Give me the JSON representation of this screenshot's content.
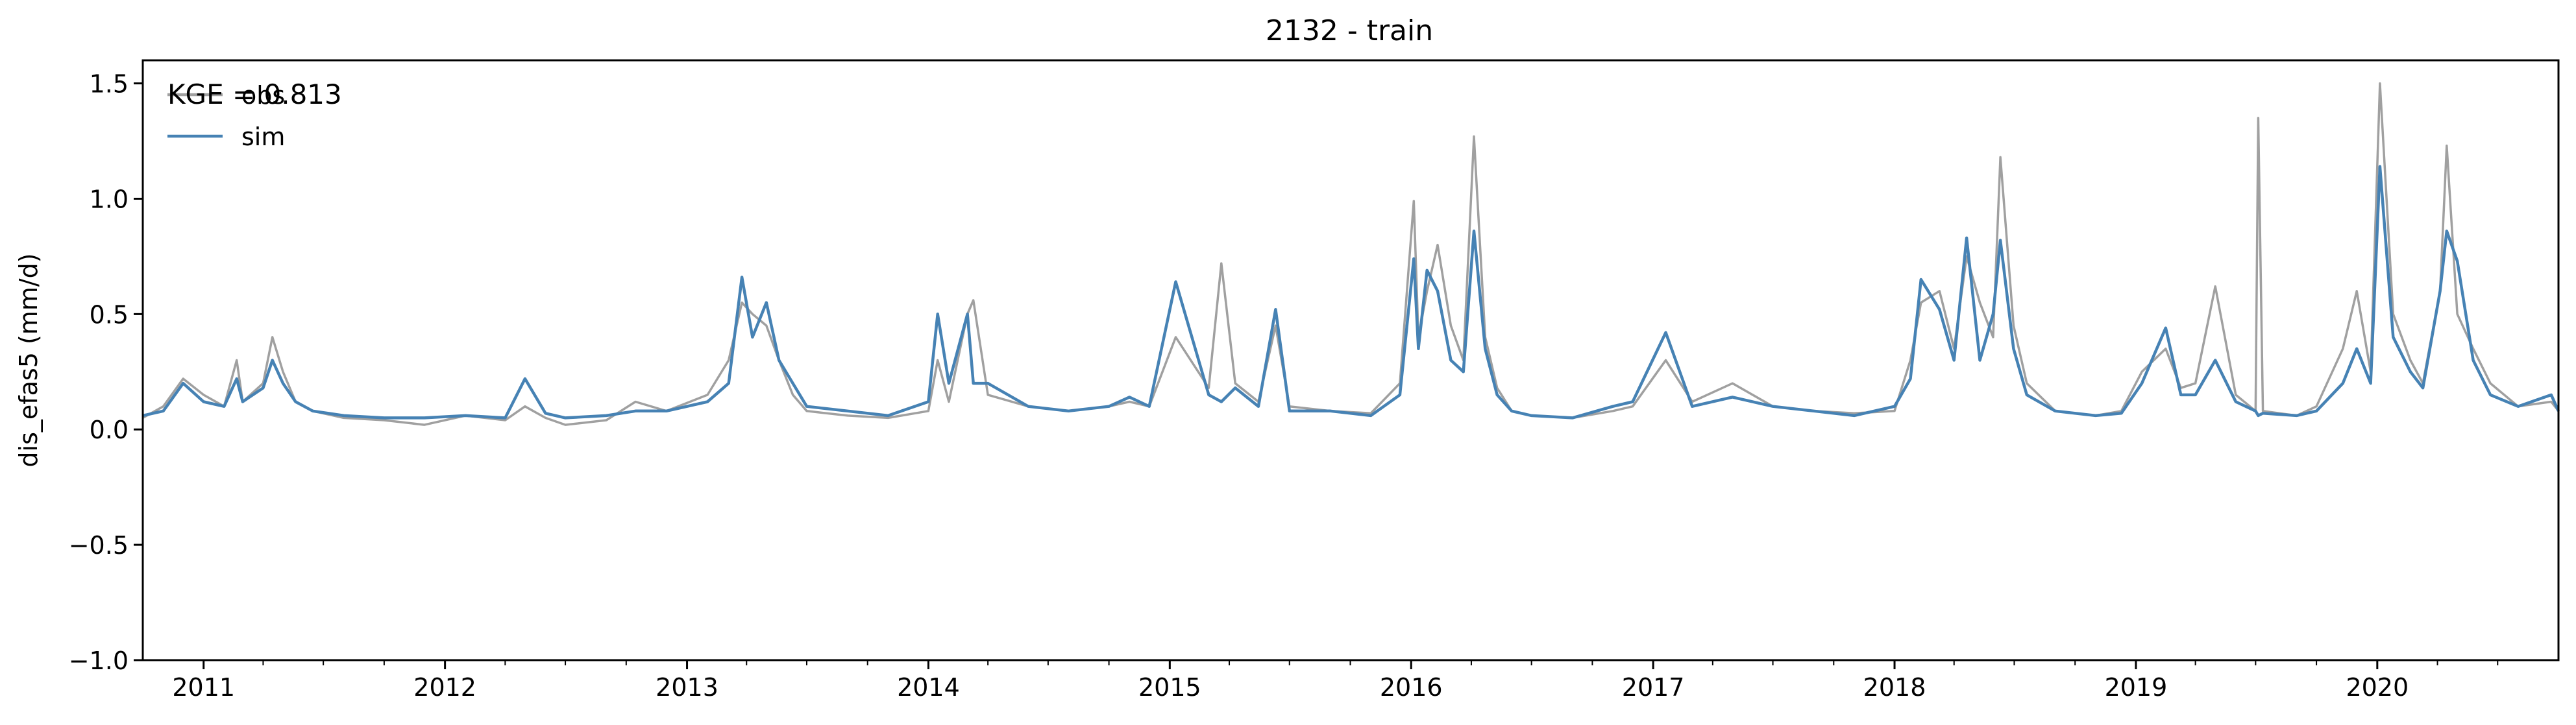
{
  "chart_data": {
    "type": "line",
    "title": "2132 - train",
    "xlabel": "",
    "ylabel": "dis_efas5 (mm/d)",
    "xlim": [
      "2010-10-01",
      "2020-10-01"
    ],
    "ylim": [
      -1.0,
      1.6
    ],
    "yticks": [
      -1.0,
      -0.5,
      0.0,
      0.5,
      1.0,
      1.5
    ],
    "ytick_labels": [
      "−1.0",
      "−0.5",
      "0.0",
      "0.5",
      "1.0",
      "1.5"
    ],
    "xticks": [
      "2011-01-01",
      "2012-01-01",
      "2013-01-01",
      "2014-01-01",
      "2015-01-01",
      "2016-01-01",
      "2017-01-01",
      "2018-01-01",
      "2019-01-01",
      "2020-01-01"
    ],
    "xtick_labels": [
      "2011",
      "2012",
      "2013",
      "2014",
      "2015",
      "2016",
      "2017",
      "2018",
      "2019",
      "2020"
    ],
    "annotation": "KGE = 0.813",
    "legend": {
      "location": "upper-left",
      "entries": [
        "obs",
        "sim"
      ]
    },
    "grid": false,
    "colors": {
      "obs": "#a0a0a0",
      "sim": "#4682b4"
    },
    "series": [
      {
        "name": "obs",
        "x": [
          "2010-10-01",
          "2010-11-01",
          "2010-12-01",
          "2011-01-01",
          "2011-02-01",
          "2011-02-20",
          "2011-03-01",
          "2011-04-01",
          "2011-04-15",
          "2011-05-01",
          "2011-05-20",
          "2011-06-15",
          "2011-08-01",
          "2011-10-01",
          "2011-12-01",
          "2012-02-01",
          "2012-04-01",
          "2012-05-01",
          "2012-06-01",
          "2012-07-01",
          "2012-09-01",
          "2012-10-15",
          "2012-12-01",
          "2013-02-01",
          "2013-03-05",
          "2013-03-25",
          "2013-04-10",
          "2013-05-01",
          "2013-05-20",
          "2013-06-10",
          "2013-07-01",
          "2013-09-01",
          "2013-11-01",
          "2014-01-01",
          "2014-01-15",
          "2014-02-01",
          "2014-03-01",
          "2014-03-10",
          "2014-04-01",
          "2014-06-01",
          "2014-08-01",
          "2014-10-01",
          "2014-11-01",
          "2014-12-01",
          "2015-01-10",
          "2015-03-01",
          "2015-03-20",
          "2015-04-10",
          "2015-05-15",
          "2015-06-10",
          "2015-07-01",
          "2015-09-01",
          "2015-11-01",
          "2015-12-15",
          "2016-01-05",
          "2016-01-12",
          "2016-01-25",
          "2016-02-10",
          "2016-03-01",
          "2016-03-20",
          "2016-04-05",
          "2016-04-22",
          "2016-05-10",
          "2016-06-01",
          "2016-07-01",
          "2016-09-01",
          "2016-11-01",
          "2016-12-01",
          "2017-01-20",
          "2017-03-01",
          "2017-05-01",
          "2017-07-01",
          "2017-09-01",
          "2017-11-01",
          "2018-01-01",
          "2018-01-25",
          "2018-02-10",
          "2018-03-10",
          "2018-04-01",
          "2018-04-20",
          "2018-05-10",
          "2018-05-30",
          "2018-06-10",
          "2018-06-30",
          "2018-07-20",
          "2018-09-01",
          "2018-11-01",
          "2018-12-10",
          "2019-01-10",
          "2019-02-15",
          "2019-03-10",
          "2019-04-01",
          "2019-05-01",
          "2019-06-01",
          "2019-07-01",
          "2019-07-05",
          "2019-07-12",
          "2019-09-01",
          "2019-10-01",
          "2019-11-10",
          "2019-12-01",
          "2019-12-22",
          "2020-01-05",
          "2020-01-25",
          "2020-02-20",
          "2020-03-10",
          "2020-04-05",
          "2020-04-15",
          "2020-05-01",
          "2020-05-25",
          "2020-06-20",
          "2020-08-01",
          "2020-09-20",
          "2020-10-01"
        ],
        "values": [
          0.05,
          0.1,
          0.22,
          0.15,
          0.1,
          0.3,
          0.12,
          0.2,
          0.4,
          0.25,
          0.12,
          0.08,
          0.05,
          0.04,
          0.02,
          0.06,
          0.04,
          0.1,
          0.05,
          0.02,
          0.04,
          0.12,
          0.08,
          0.15,
          0.3,
          0.55,
          0.5,
          0.45,
          0.3,
          0.15,
          0.08,
          0.06,
          0.05,
          0.08,
          0.3,
          0.12,
          0.5,
          0.56,
          0.15,
          0.1,
          0.08,
          0.1,
          0.12,
          0.1,
          0.4,
          0.18,
          0.72,
          0.2,
          0.12,
          0.45,
          0.1,
          0.08,
          0.07,
          0.2,
          0.99,
          0.4,
          0.6,
          0.8,
          0.45,
          0.3,
          1.27,
          0.4,
          0.18,
          0.08,
          0.06,
          0.05,
          0.08,
          0.1,
          0.3,
          0.12,
          0.2,
          0.1,
          0.08,
          0.07,
          0.08,
          0.3,
          0.55,
          0.6,
          0.35,
          0.75,
          0.55,
          0.4,
          1.18,
          0.45,
          0.2,
          0.08,
          0.06,
          0.08,
          0.25,
          0.35,
          0.18,
          0.2,
          0.62,
          0.15,
          0.08,
          1.35,
          0.08,
          0.06,
          0.1,
          0.35,
          0.6,
          0.25,
          1.5,
          0.5,
          0.3,
          0.2,
          0.6,
          1.23,
          0.5,
          0.35,
          0.2,
          0.1,
          0.12,
          0.08
        ]
      },
      {
        "name": "sim",
        "x": [
          "2010-10-01",
          "2010-11-01",
          "2010-12-01",
          "2011-01-01",
          "2011-02-01",
          "2011-02-20",
          "2011-03-01",
          "2011-04-01",
          "2011-04-15",
          "2011-05-01",
          "2011-05-20",
          "2011-06-15",
          "2011-08-01",
          "2011-10-01",
          "2011-12-01",
          "2012-02-01",
          "2012-04-01",
          "2012-05-01",
          "2012-06-01",
          "2012-07-01",
          "2012-09-01",
          "2012-10-15",
          "2012-12-01",
          "2013-02-01",
          "2013-03-05",
          "2013-03-25",
          "2013-04-10",
          "2013-05-01",
          "2013-05-20",
          "2013-06-10",
          "2013-07-01",
          "2013-09-01",
          "2013-11-01",
          "2014-01-01",
          "2014-01-15",
          "2014-02-01",
          "2014-03-01",
          "2014-03-10",
          "2014-04-01",
          "2014-06-01",
          "2014-08-01",
          "2014-10-01",
          "2014-11-01",
          "2014-12-01",
          "2015-01-10",
          "2015-03-01",
          "2015-03-20",
          "2015-04-10",
          "2015-05-15",
          "2015-06-10",
          "2015-07-01",
          "2015-09-01",
          "2015-11-01",
          "2015-12-15",
          "2016-01-05",
          "2016-01-12",
          "2016-01-25",
          "2016-02-10",
          "2016-03-01",
          "2016-03-20",
          "2016-04-05",
          "2016-04-22",
          "2016-05-10",
          "2016-06-01",
          "2016-07-01",
          "2016-09-01",
          "2016-11-01",
          "2016-12-01",
          "2017-01-20",
          "2017-03-01",
          "2017-05-01",
          "2017-07-01",
          "2017-09-01",
          "2017-11-01",
          "2018-01-01",
          "2018-01-25",
          "2018-02-10",
          "2018-03-10",
          "2018-04-01",
          "2018-04-20",
          "2018-05-10",
          "2018-05-30",
          "2018-06-10",
          "2018-06-30",
          "2018-07-20",
          "2018-09-01",
          "2018-11-01",
          "2018-12-10",
          "2019-01-10",
          "2019-02-15",
          "2019-03-10",
          "2019-04-01",
          "2019-05-01",
          "2019-06-01",
          "2019-07-01",
          "2019-07-05",
          "2019-07-12",
          "2019-09-01",
          "2019-10-01",
          "2019-11-10",
          "2019-12-01",
          "2019-12-22",
          "2020-01-05",
          "2020-01-25",
          "2020-02-20",
          "2020-03-10",
          "2020-04-05",
          "2020-04-15",
          "2020-05-01",
          "2020-05-25",
          "2020-06-20",
          "2020-08-01",
          "2020-09-20",
          "2020-10-01"
        ],
        "values": [
          0.06,
          0.08,
          0.2,
          0.12,
          0.1,
          0.22,
          0.12,
          0.18,
          0.3,
          0.2,
          0.12,
          0.08,
          0.06,
          0.05,
          0.05,
          0.06,
          0.05,
          0.22,
          0.07,
          0.05,
          0.06,
          0.08,
          0.08,
          0.12,
          0.2,
          0.66,
          0.4,
          0.55,
          0.3,
          0.2,
          0.1,
          0.08,
          0.06,
          0.12,
          0.5,
          0.2,
          0.5,
          0.2,
          0.2,
          0.1,
          0.08,
          0.1,
          0.14,
          0.1,
          0.64,
          0.15,
          0.12,
          0.18,
          0.1,
          0.52,
          0.08,
          0.08,
          0.06,
          0.15,
          0.74,
          0.35,
          0.69,
          0.6,
          0.3,
          0.25,
          0.86,
          0.35,
          0.15,
          0.08,
          0.06,
          0.05,
          0.1,
          0.12,
          0.42,
          0.1,
          0.14,
          0.1,
          0.08,
          0.06,
          0.1,
          0.22,
          0.65,
          0.52,
          0.3,
          0.83,
          0.3,
          0.5,
          0.82,
          0.35,
          0.15,
          0.08,
          0.06,
          0.07,
          0.2,
          0.44,
          0.15,
          0.15,
          0.3,
          0.12,
          0.08,
          0.06,
          0.07,
          0.06,
          0.08,
          0.2,
          0.35,
          0.2,
          1.14,
          0.4,
          0.25,
          0.18,
          0.6,
          0.86,
          0.73,
          0.3,
          0.15,
          0.1,
          0.15,
          0.08
        ]
      }
    ]
  }
}
